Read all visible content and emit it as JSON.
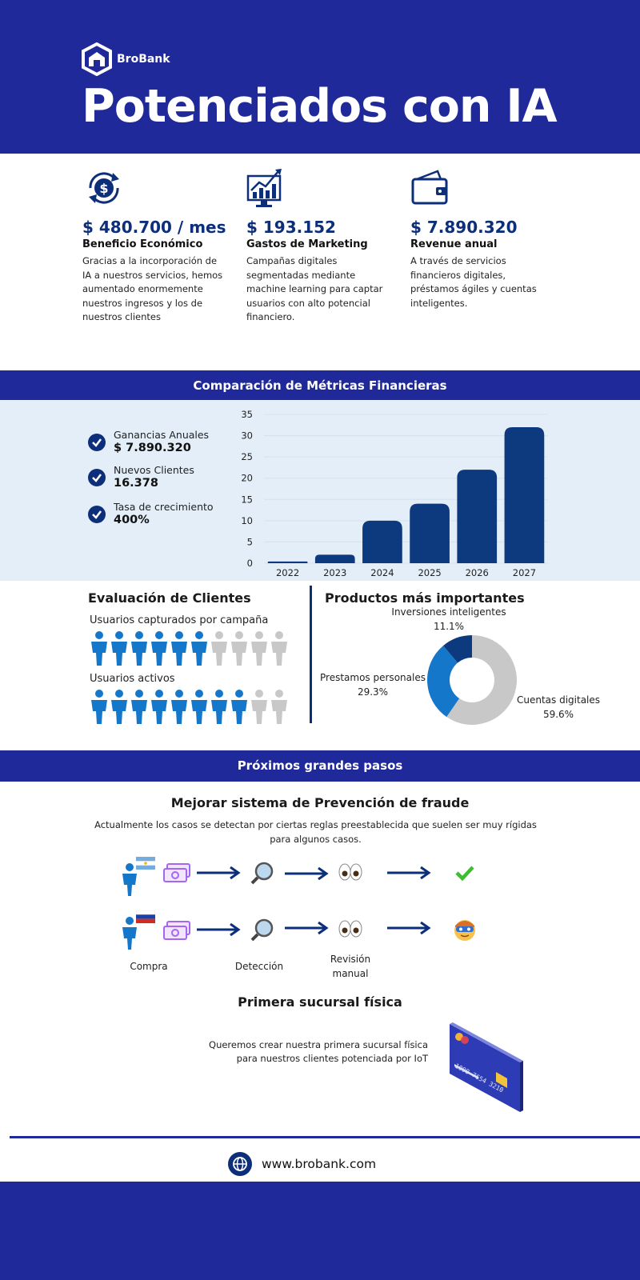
{
  "header": {
    "brand": "BroBank",
    "title": "Potenciados con IA"
  },
  "stats": [
    {
      "icon": "dollar-cycle-icon",
      "value": "$ 480.700 / mes",
      "label": "Beneficio Económico",
      "desc": "Gracias a la incorporación de IA a nuestros servicios, hemos aumentado enormemente nuestros ingresos y los de nuestros clientes"
    },
    {
      "icon": "growth-chart-icon",
      "value": "$ 193.152",
      "label": "Gastos de Marketing",
      "desc": "Campañas digitales segmentadas mediante machine learning para captar usuarios con alto potencial financiero."
    },
    {
      "icon": "wallet-icon",
      "value": "$ 7.890.320",
      "label": "Revenue anual",
      "desc": "A través de servicios financieros digitales, préstamos ágiles y cuentas inteligentes."
    }
  ],
  "metrics": {
    "banner": "Comparación de Métricas Financieras",
    "kpis": [
      {
        "label": "Ganancias Anuales",
        "value": "$ 7.890.320"
      },
      {
        "label": "Nuevos Clientes",
        "value": "16.378"
      },
      {
        "label": "Tasa de crecimiento",
        "value": "400%"
      }
    ]
  },
  "chart_data": [
    {
      "type": "bar",
      "categories": [
        "2022",
        "2023",
        "2024",
        "2025",
        "2026",
        "2027"
      ],
      "values": [
        0.4,
        2,
        10,
        14,
        22,
        32
      ],
      "ylim": [
        0,
        35
      ],
      "yticks": [
        "0",
        "5",
        "10",
        "15",
        "20",
        "25",
        "30",
        "35"
      ],
      "grid": true,
      "color": "#0d3a7e"
    },
    {
      "type": "pie",
      "labels": [
        "Cuentas digitales",
        "Prestamos personales",
        "Inversiones inteligentes"
      ],
      "values": [
        59.6,
        29.3,
        11.1
      ],
      "value_labels": [
        "59.6%",
        "29.3%",
        "11.1%"
      ],
      "colors": [
        "#c8c8c8",
        "#1577c9",
        "#0d3a7e"
      ]
    }
  ],
  "evaluation": {
    "title": "Evaluación de Clientes",
    "captured_label": "Usuarios capturados por campaña",
    "captured_filled": 6,
    "captured_total": 10,
    "active_label": "Usuarios activos",
    "active_filled": 8,
    "active_total": 10,
    "filled_color": "#1577c9",
    "empty_color": "#c8c8c8"
  },
  "products": {
    "title": "Productos más importantes"
  },
  "next": {
    "banner": "Próximos grandes pasos",
    "fraud_title": "Mejorar sistema de Prevención de fraude",
    "fraud_desc": "Actualmente los casos se detectan por ciertas reglas preestablecida que suelen ser muy rígidas para algunos casos.",
    "flow_labels": [
      "Compra",
      "Detección",
      "Revisión manual"
    ],
    "branch_title": "Primera sucursal física",
    "branch_desc": "Queremos crear nuestra primera sucursal física para nuestros clientes potenciada por IoT",
    "card_number": "1098 7654 3210"
  },
  "footer": {
    "website": "www.brobank.com"
  }
}
